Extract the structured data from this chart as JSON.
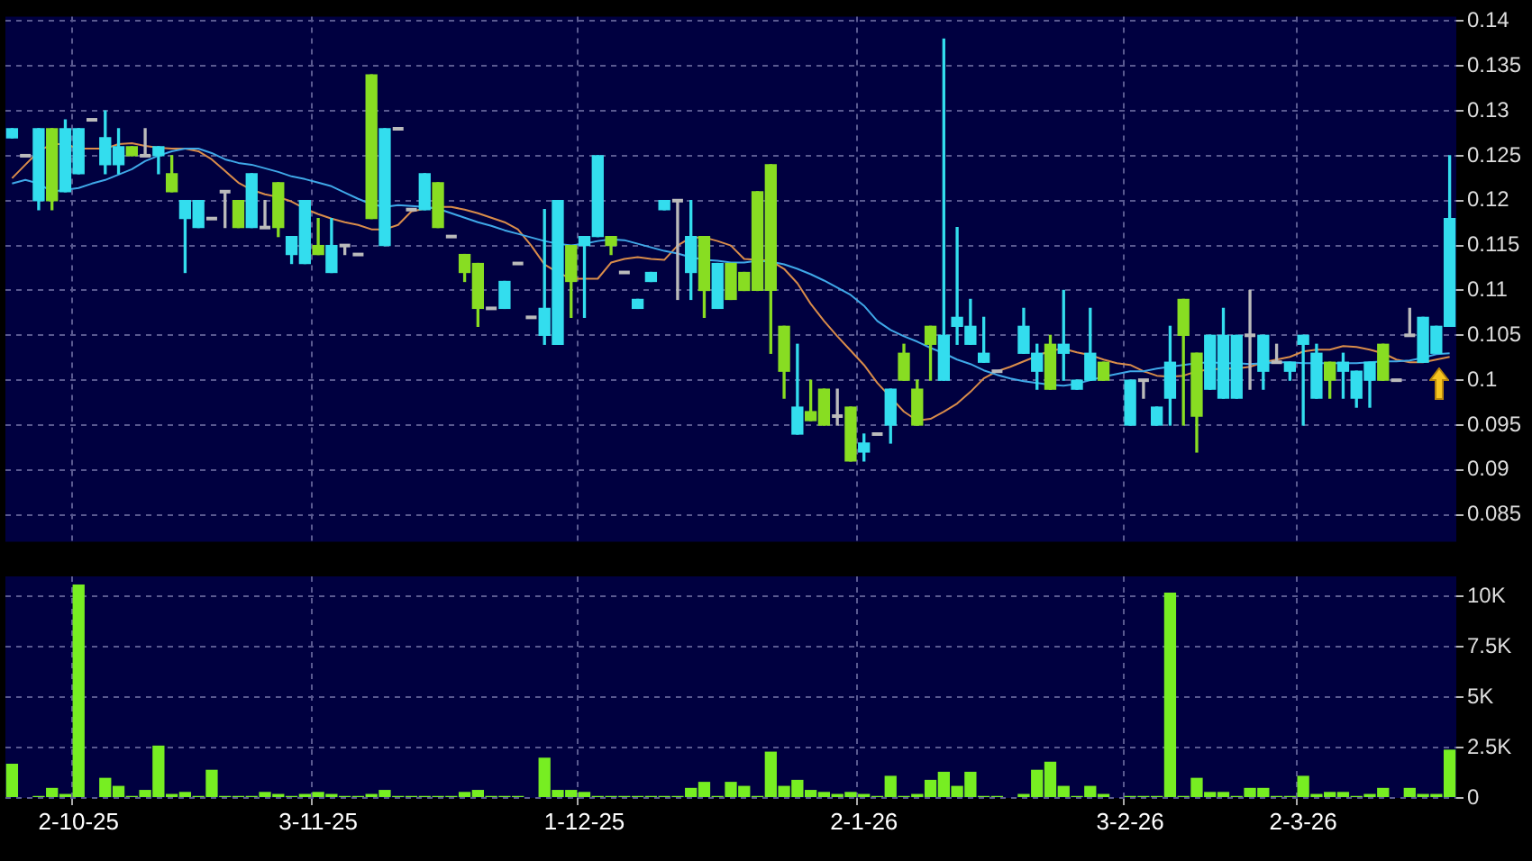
{
  "chart_data": [
    {
      "type": "candlestick",
      "categories": [
        null,
        null,
        null,
        null,
        null,
        null,
        null,
        null,
        null,
        null,
        null,
        null,
        null,
        null,
        null,
        null,
        null,
        null,
        null,
        null,
        null,
        null,
        null,
        null,
        null,
        null,
        null,
        null,
        null,
        null,
        null,
        null,
        null,
        null,
        null,
        null,
        null,
        null,
        null,
        null,
        null,
        null,
        null,
        null,
        null,
        null,
        null,
        null,
        null,
        null,
        null,
        null,
        null,
        null,
        null,
        null,
        null,
        null,
        null,
        null,
        null,
        null,
        null,
        null,
        null,
        null,
        null,
        null,
        null,
        null,
        null,
        null,
        null,
        null,
        null,
        null,
        null,
        null,
        null,
        null,
        null,
        null,
        null,
        null,
        null,
        null,
        null,
        null,
        null,
        null,
        null,
        null,
        null,
        null,
        null,
        null,
        null,
        null,
        null,
        null,
        null,
        null,
        null,
        null,
        null,
        null,
        null,
        null,
        null
      ],
      "ohlc": [
        [
          0.127,
          0.128,
          0.127,
          0.128
        ],
        [
          0.125,
          0.125,
          0.125,
          0.125
        ],
        [
          0.12,
          0.128,
          0.119,
          0.128
        ],
        [
          0.128,
          0.128,
          0.119,
          0.12
        ],
        [
          0.121,
          0.129,
          0.121,
          0.128
        ],
        [
          0.123,
          0.128,
          0.123,
          0.128
        ],
        [
          0.129,
          0.129,
          0.129,
          0.129
        ],
        [
          0.124,
          0.13,
          0.123,
          0.127
        ],
        [
          0.124,
          0.128,
          0.123,
          0.126
        ],
        [
          0.126,
          0.126,
          0.125,
          0.125
        ],
        [
          0.125,
          0.128,
          0.125,
          0.125
        ],
        [
          0.125,
          0.126,
          0.123,
          0.126
        ],
        [
          0.123,
          0.125,
          0.121,
          0.121
        ],
        [
          0.118,
          0.12,
          0.112,
          0.12
        ],
        [
          0.117,
          0.12,
          0.117,
          0.12
        ],
        [
          0.118,
          0.118,
          0.118,
          0.118
        ],
        [
          0.121,
          0.121,
          0.117,
          0.121
        ],
        [
          0.12,
          0.12,
          0.117,
          0.117
        ],
        [
          0.117,
          0.123,
          0.117,
          0.123
        ],
        [
          0.117,
          0.12,
          0.117,
          0.117
        ],
        [
          0.122,
          0.122,
          0.116,
          0.117
        ],
        [
          0.114,
          0.116,
          0.113,
          0.116
        ],
        [
          0.113,
          0.12,
          0.113,
          0.12
        ],
        [
          0.115,
          0.118,
          0.114,
          0.114
        ],
        [
          0.112,
          0.118,
          0.112,
          0.115
        ],
        [
          0.115,
          0.115,
          0.114,
          0.115
        ],
        [
          0.114,
          0.114,
          0.114,
          0.114
        ],
        [
          0.134,
          0.134,
          0.118,
          0.118
        ],
        [
          0.115,
          0.128,
          0.115,
          0.128
        ],
        [
          0.128,
          0.128,
          0.128,
          0.128
        ],
        [
          0.119,
          0.119,
          0.119,
          0.119
        ],
        [
          0.119,
          0.123,
          0.119,
          0.123
        ],
        [
          0.122,
          0.122,
          0.117,
          0.117
        ],
        [
          0.116,
          0.116,
          0.116,
          0.116
        ],
        [
          0.114,
          0.114,
          0.111,
          0.112
        ],
        [
          0.113,
          0.113,
          0.106,
          0.108
        ],
        [
          0.108,
          0.108,
          0.108,
          0.108
        ],
        [
          0.108,
          0.111,
          0.108,
          0.111
        ],
        [
          0.113,
          0.113,
          0.113,
          0.113
        ],
        [
          0.107,
          0.107,
          0.107,
          0.107
        ],
        [
          0.105,
          0.119,
          0.104,
          0.108
        ],
        [
          0.104,
          0.12,
          0.104,
          0.12
        ],
        [
          0.115,
          0.115,
          0.107,
          0.111
        ],
        [
          0.115,
          0.116,
          0.107,
          0.116
        ],
        [
          0.116,
          0.125,
          0.116,
          0.125
        ],
        [
          0.116,
          0.116,
          0.114,
          0.115
        ],
        [
          0.112,
          0.112,
          0.112,
          0.112
        ],
        [
          0.108,
          0.109,
          0.108,
          0.109
        ],
        [
          0.111,
          0.112,
          0.111,
          0.112
        ],
        [
          0.119,
          0.12,
          0.119,
          0.12
        ],
        [
          0.12,
          0.12,
          0.109,
          0.12
        ],
        [
          0.112,
          0.12,
          0.109,
          0.116
        ],
        [
          0.116,
          0.116,
          0.107,
          0.11
        ],
        [
          0.108,
          0.113,
          0.108,
          0.113
        ],
        [
          0.113,
          0.113,
          0.109,
          0.109
        ],
        [
          0.112,
          0.112,
          0.11,
          0.11
        ],
        [
          0.121,
          0.121,
          0.11,
          0.11
        ],
        [
          0.124,
          0.124,
          0.103,
          0.11
        ],
        [
          0.106,
          0.106,
          0.098,
          0.101
        ],
        [
          0.094,
          0.104,
          0.094,
          0.097
        ],
        [
          0.0965,
          0.1,
          0.0955,
          0.0955
        ],
        [
          0.099,
          0.099,
          0.095,
          0.095
        ],
        [
          0.096,
          0.099,
          0.095,
          0.096
        ],
        [
          0.097,
          0.097,
          0.091,
          0.091
        ],
        [
          0.092,
          0.094,
          0.091,
          0.093
        ],
        [
          0.094,
          0.094,
          0.094,
          0.094
        ],
        [
          0.095,
          0.099,
          0.093,
          0.099
        ],
        [
          0.103,
          0.104,
          0.1,
          0.1
        ],
        [
          0.099,
          0.1,
          0.095,
          0.095
        ],
        [
          0.106,
          0.106,
          0.1,
          0.104
        ],
        [
          0.1,
          0.138,
          0.1,
          0.105
        ],
        [
          0.106,
          0.117,
          0.104,
          0.107
        ],
        [
          0.104,
          0.109,
          0.104,
          0.106
        ],
        [
          0.102,
          0.107,
          0.102,
          0.103
        ],
        [
          0.101,
          0.101,
          0.101,
          0.101
        ],
        null,
        [
          0.103,
          0.108,
          0.103,
          0.106
        ],
        [
          0.101,
          0.104,
          0.099,
          0.103
        ],
        [
          0.104,
          0.105,
          0.099,
          0.099
        ],
        [
          0.103,
          0.11,
          0.1,
          0.104
        ],
        [
          0.099,
          0.1,
          0.099,
          0.1
        ],
        [
          0.1,
          0.108,
          0.1,
          0.103
        ],
        [
          0.102,
          0.102,
          0.1,
          0.1
        ],
        null,
        [
          0.095,
          0.1,
          0.095,
          0.1
        ],
        [
          0.1,
          0.1,
          0.098,
          0.1
        ],
        [
          0.095,
          0.097,
          0.095,
          0.097
        ],
        [
          0.098,
          0.106,
          0.095,
          0.102
        ],
        [
          0.109,
          0.109,
          0.095,
          0.105
        ],
        [
          0.103,
          0.103,
          0.092,
          0.096
        ],
        [
          0.099,
          0.105,
          0.099,
          0.105
        ],
        [
          0.098,
          0.108,
          0.098,
          0.105
        ],
        [
          0.098,
          0.105,
          0.098,
          0.105
        ],
        [
          0.105,
          0.11,
          0.099,
          0.105
        ],
        [
          0.101,
          0.105,
          0.099,
          0.105
        ],
        [
          0.102,
          0.104,
          0.102,
          0.102
        ],
        [
          0.101,
          0.102,
          0.1,
          0.102
        ],
        [
          0.104,
          0.105,
          0.095,
          0.105
        ],
        [
          0.098,
          0.104,
          0.098,
          0.103
        ],
        [
          0.102,
          0.102,
          0.098,
          0.1
        ],
        [
          0.101,
          0.103,
          0.098,
          0.102
        ],
        [
          0.098,
          0.101,
          0.097,
          0.101
        ],
        [
          0.1,
          0.102,
          0.097,
          0.102
        ],
        [
          0.104,
          0.104,
          0.1,
          0.1
        ],
        [
          0.1,
          0.1,
          0.1,
          0.1
        ],
        [
          0.105,
          0.108,
          0.105,
          0.105
        ],
        [
          0.102,
          0.107,
          0.102,
          0.107
        ],
        [
          0.103,
          0.106,
          0.103,
          0.106
        ],
        [
          0.106,
          0.125,
          0.106,
          0.118
        ]
      ],
      "colors": [
        "#33ddee",
        "#bbbbbb",
        "#33ddee",
        "#88dd22",
        "#33ddee",
        "#33ddee",
        "#bbbbbb",
        "#33ddee",
        "#33ddee",
        "#88dd22",
        "#bbbbbb",
        "#33ddee",
        "#88dd22",
        "#33ddee",
        "#33ddee",
        "#bbbbbb",
        "#bbbbbb",
        "#88dd22",
        "#33ddee",
        "#bbbbbb",
        "#88dd22",
        "#33ddee",
        "#33ddee",
        "#88dd22",
        "#33ddee",
        "#bbbbbb",
        "#bbbbbb",
        "#88dd22",
        "#33ddee",
        "#bbbbbb",
        "#bbbbbb",
        "#33ddee",
        "#88dd22",
        "#bbbbbb",
        "#88dd22",
        "#88dd22",
        "#bbbbbb",
        "#33ddee",
        "#bbbbbb",
        "#bbbbbb",
        "#33ddee",
        "#33ddee",
        "#88dd22",
        "#33ddee",
        "#33ddee",
        "#88dd22",
        "#bbbbbb",
        "#33ddee",
        "#33ddee",
        "#33ddee",
        "#bbbbbb",
        "#33ddee",
        "#88dd22",
        "#33ddee",
        "#88dd22",
        "#88dd22",
        "#88dd22",
        "#88dd22",
        "#88dd22",
        "#33ddee",
        "#88dd22",
        "#88dd22",
        "#bbbbbb",
        "#88dd22",
        "#33ddee",
        "#bbbbbb",
        "#33ddee",
        "#88dd22",
        "#88dd22",
        "#88dd22",
        "#33ddee",
        "#33ddee",
        "#33ddee",
        "#33ddee",
        "#bbbbbb",
        null,
        "#33ddee",
        "#33ddee",
        "#88dd22",
        "#33ddee",
        "#33ddee",
        "#33ddee",
        "#88dd22",
        null,
        "#33ddee",
        "#bbbbbb",
        "#33ddee",
        "#33ddee",
        "#88dd22",
        "#88dd22",
        "#33ddee",
        "#33ddee",
        "#33ddee",
        "#bbbbbb",
        "#33ddee",
        "#bbbbbb",
        "#33ddee",
        "#33ddee",
        "#33ddee",
        "#88dd22",
        "#33ddee",
        "#33ddee",
        "#33ddee",
        "#88dd22",
        "#bbbbbb",
        "#bbbbbb",
        "#33ddee",
        "#33ddee",
        "#33ddee"
      ],
      "series": [
        {
          "type": "line",
          "color": "#3fa8e8",
          "values": [
            0.1219,
            0.1223,
            0.1219,
            0.121,
            0.1212,
            0.1214,
            0.1219,
            0.1223,
            0.1229,
            0.1235,
            0.1244,
            0.125,
            0.1255,
            0.1258,
            0.1258,
            0.1253,
            0.1246,
            0.1242,
            0.124,
            0.1236,
            0.1232,
            0.1227,
            0.1224,
            0.122,
            0.1216,
            0.1209,
            0.1202,
            0.1196,
            0.1193,
            0.1195,
            0.1194,
            0.1193,
            0.1191,
            0.1186,
            0.1181,
            0.1176,
            0.1172,
            0.1167,
            0.1163,
            0.1159,
            0.1155,
            0.1152,
            0.115,
            0.1152,
            0.1155,
            0.1157,
            0.1156,
            0.1152,
            0.1148,
            0.1144,
            0.1141,
            0.1137,
            0.1134,
            0.1133,
            0.1131,
            0.1131,
            0.1133,
            0.1132,
            0.1129,
            0.1124,
            0.1118,
            0.1111,
            0.1103,
            0.1095,
            0.1083,
            0.1066,
            0.1056,
            0.1049,
            0.1043,
            0.1036,
            0.103,
            0.1023,
            0.1018,
            0.1011,
            0.1006,
            0.1002,
            0.0999,
            0.0997,
            0.0995,
            0.0994,
            0.0996,
            0.1,
            0.1004,
            0.1007,
            0.101,
            0.101,
            0.1013,
            0.1015,
            0.1017,
            0.1019,
            0.102,
            0.1019,
            0.1019,
            0.1018,
            0.1019,
            0.102,
            0.102,
            0.1019,
            0.1019,
            0.1019,
            0.1019,
            0.1019,
            0.102,
            0.1021,
            0.1021,
            0.1022,
            0.1025,
            0.1029,
            0.103
          ]
        },
        {
          "type": "line",
          "color": "#d98c4a",
          "values": [
            0.1225,
            0.124,
            0.1255,
            0.1263,
            0.1263,
            0.1258,
            0.1258,
            0.1258,
            0.1263,
            0.1264,
            0.1261,
            0.1259,
            0.1258,
            0.1258,
            0.1255,
            0.1246,
            0.1233,
            0.122,
            0.1212,
            0.1207,
            0.1204,
            0.1199,
            0.1191,
            0.1185,
            0.118,
            0.1176,
            0.1173,
            0.1168,
            0.1168,
            0.1173,
            0.1188,
            0.1191,
            0.1193,
            0.1193,
            0.119,
            0.1186,
            0.1181,
            0.1176,
            0.1168,
            0.115,
            0.1129,
            0.112,
            0.1113,
            0.1113,
            0.1113,
            0.1131,
            0.1135,
            0.1137,
            0.1135,
            0.1134,
            0.115,
            0.1159,
            0.1159,
            0.1155,
            0.115,
            0.1135,
            0.1134,
            0.1133,
            0.1124,
            0.1108,
            0.1085,
            0.1066,
            0.1049,
            0.1033,
            0.1017,
            0.0997,
            0.0981,
            0.0965,
            0.0955,
            0.0957,
            0.0965,
            0.0974,
            0.0987,
            0.1002,
            0.101,
            0.1015,
            0.1021,
            0.1027,
            0.1033,
            0.1035,
            0.1031,
            0.1028,
            0.1023,
            0.1019,
            0.1017,
            0.101,
            0.1005,
            0.1004,
            0.1005,
            0.101,
            0.1012,
            0.1013,
            0.1013,
            0.1015,
            0.102,
            0.1023,
            0.1026,
            0.1032,
            0.1034,
            0.1034,
            0.1038,
            0.1037,
            0.1034,
            0.103,
            0.1023,
            0.102,
            0.102,
            0.1023,
            0.1026
          ]
        }
      ],
      "ylim": [
        0.082,
        0.1405
      ],
      "yticks": [
        0.085,
        0.09,
        0.095,
        0.1,
        0.105,
        0.11,
        0.115,
        0.12,
        0.125,
        0.13,
        0.135,
        0.14
      ],
      "grid": true,
      "tick_labels": "y"
    },
    {
      "type": "bar",
      "categories": [
        null,
        null,
        null,
        null,
        null,
        "2-10-25",
        null,
        null,
        null,
        null,
        null,
        null,
        null,
        null,
        null,
        null,
        null,
        null,
        null,
        null,
        null,
        null,
        null,
        "3-11-25",
        null,
        null,
        null,
        null,
        null,
        null,
        null,
        null,
        null,
        null,
        null,
        null,
        null,
        null,
        null,
        null,
        null,
        null,
        null,
        "1-12-25",
        null,
        null,
        null,
        null,
        null,
        null,
        null,
        null,
        null,
        null,
        null,
        null,
        null,
        null,
        null,
        null,
        null,
        null,
        null,
        null,
        "2-1-26",
        null,
        null,
        null,
        null,
        null,
        null,
        null,
        null,
        null,
        null,
        null,
        null,
        null,
        null,
        null,
        null,
        null,
        null,
        null,
        "3-2-26",
        null,
        null,
        null,
        null,
        null,
        null,
        null,
        null,
        null,
        null,
        null,
        null,
        "2-3-26",
        null,
        null,
        null,
        null,
        null,
        null,
        null,
        null,
        null,
        null,
        null
      ],
      "values": [
        1700,
        0,
        100,
        500,
        200,
        10600,
        0,
        1000,
        600,
        100,
        400,
        2600,
        200,
        300,
        100,
        1400,
        100,
        100,
        100,
        300,
        200,
        100,
        200,
        300,
        200,
        100,
        100,
        200,
        400,
        100,
        100,
        100,
        100,
        100,
        300,
        400,
        100,
        100,
        100,
        0,
        2000,
        400,
        400,
        300,
        100,
        100,
        100,
        100,
        100,
        100,
        100,
        500,
        800,
        100,
        800,
        600,
        100,
        2300,
        600,
        900,
        400,
        300,
        200,
        300,
        200,
        100,
        1100,
        100,
        200,
        900,
        1300,
        600,
        1300,
        100,
        100,
        0,
        200,
        1400,
        1800,
        600,
        100,
        600,
        200,
        0,
        100,
        100,
        100,
        10200,
        100,
        1000,
        300,
        300,
        100,
        500,
        500,
        100,
        100,
        1100,
        200,
        300,
        300,
        100,
        200,
        500,
        0,
        500,
        200,
        200,
        2400
      ],
      "color": "#77ee22",
      "ylim": [
        0,
        11000
      ],
      "yticks": [
        0,
        {
          "value": 2500,
          "label": "2.5K"
        },
        {
          "value": 5000,
          "label": "5K"
        },
        {
          "value": 7500,
          "label": "7.5K"
        },
        {
          "value": 10000,
          "label": "10K"
        }
      ],
      "grid": true
    }
  ]
}
